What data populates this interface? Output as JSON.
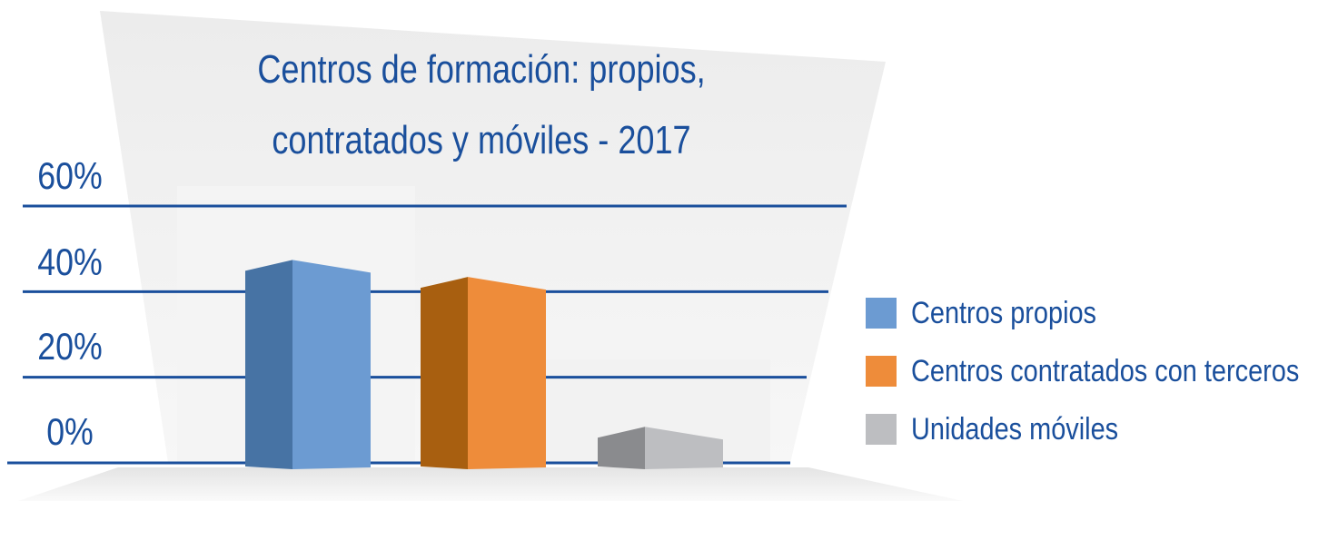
{
  "chart_data": {
    "type": "bar",
    "title": "Centros de formación: propios, contratados y móviles - 2017",
    "title_lines": [
      "Centros de formación: propios,",
      "contratados y móviles - 2017"
    ],
    "categories": [
      "Centros propios",
      "Centros contratados con terceros",
      "Unidades móviles"
    ],
    "values": [
      47,
      43,
      8
    ],
    "value_unit": "%",
    "ylim": [
      0,
      60
    ],
    "yticks": [
      {
        "label": "60%",
        "value": 60
      },
      {
        "label": "40%",
        "value": 40
      },
      {
        "label": "20%",
        "value": 20
      },
      {
        "label": "0%",
        "value": 0
      }
    ],
    "grid": true,
    "legend_position": "right",
    "legend": [
      {
        "label": "Centros propios",
        "color": "#6c9bd2",
        "shade": "#4773a4"
      },
      {
        "label": "Centros contratados con terceros",
        "color": "#ee8c3a",
        "shade": "#a85f10"
      },
      {
        "label": "Unidades móviles",
        "color": "#bdbec1",
        "shade": "#8a8b8e"
      }
    ],
    "colors": {
      "text": "#1a4f9c",
      "gridline": "#1a4f9c"
    }
  }
}
